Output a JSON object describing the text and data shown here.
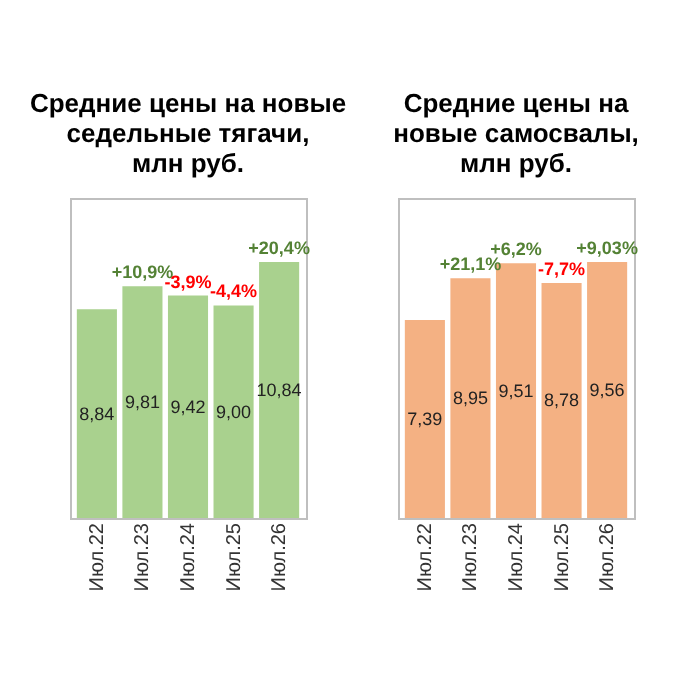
{
  "chart_data": [
    {
      "type": "bar",
      "title": "Средние цены на новые\nседельные тягачи,\nмлн руб.",
      "categories": [
        "Июл.22",
        "Июл.23",
        "Июл.24",
        "Июл.25",
        "Июл.26"
      ],
      "values": [
        8.84,
        9.81,
        9.42,
        9.0,
        10.84
      ],
      "color": "#a9d18e",
      "value_labels": [
        "8,84",
        "9,81",
        "9,42",
        "9,00",
        "10,84"
      ],
      "annotations": [
        {
          "text": "+10,9%",
          "x": "Июл.23",
          "y": 9.81
        },
        {
          "text": "-3,9%",
          "x": "Июл.24",
          "y": 9.42
        },
        {
          "text": "-4,4%",
          "x": "Июл.25",
          "y": 9.0
        },
        {
          "text": "+20,4%",
          "x": "Июл.26",
          "y": 10.84
        }
      ]
    },
    {
      "type": "bar",
      "title": "Средние цены на\nновые самосвалы,\nмлн руб.",
      "categories": [
        "Июл.22",
        "Июл.23",
        "Июл.24",
        "Июл.25",
        "Июл.26"
      ],
      "values": [
        7.39,
        8.95,
        9.51,
        8.78,
        9.56
      ],
      "color": "#f4b183",
      "value_labels": [
        "7,39",
        "8,95",
        "9,51",
        "8,78",
        "9,56"
      ],
      "annotations": [
        {
          "text": "+21,1%",
          "x": "Июл.23",
          "y": 8.95
        },
        {
          "text": "+6,2%",
          "x": "Июл.24",
          "y": 9.51
        },
        {
          "text": "-7,7%",
          "x": "Июл.25",
          "y": 8.78
        },
        {
          "text": "+9,03%",
          "x": "Июл.26",
          "y": 9.56
        }
      ]
    }
  ]
}
